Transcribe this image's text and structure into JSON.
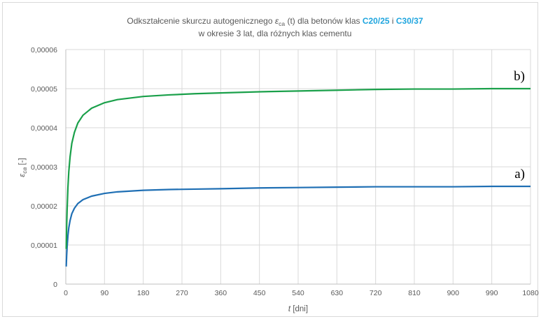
{
  "chart_data": {
    "type": "line",
    "title": {
      "line1_prefix": "Odkształcenie skurczu autogenicznego ",
      "line1_symbol": "ε",
      "line1_symbol_sub": "ca",
      "line1_mid": " (t) dla betonów klas ",
      "line1_class1": "C20/25",
      "line1_and": " i ",
      "line1_class2": "C30/37",
      "line2": "w okresie 3 lat, dla różnych klas cementu"
    },
    "xlabel_var": "t",
    "xlabel_unit": " [dni]",
    "ylabel_symbol": "ε",
    "ylabel_sub": "ca",
    "ylabel_unit": " [-]",
    "xlim": [
      0,
      1080
    ],
    "ylim": [
      0,
      6e-05
    ],
    "x_ticks": [
      0,
      90,
      180,
      270,
      360,
      450,
      540,
      630,
      720,
      810,
      900,
      990,
      1080
    ],
    "y_ticks": [
      0,
      1e-05,
      2e-05,
      3e-05,
      4e-05,
      5e-05,
      6e-05
    ],
    "y_tick_labels": [
      "0",
      "0,00001",
      "0,00002",
      "0,00003",
      "0,00004",
      "0,00005",
      "0,00006"
    ],
    "grid": true,
    "series": [
      {
        "label": "a)",
        "color": "#1f6fb4",
        "x": [
          1,
          2,
          3,
          5,
          7,
          10,
          14,
          20,
          28,
          40,
          60,
          90,
          120,
          180,
          240,
          300,
          360,
          450,
          540,
          630,
          720,
          810,
          900,
          990,
          1080
        ],
        "y": [
          4.5e-06,
          7.3e-06,
          9.4e-06,
          1.24e-05,
          1.44e-05,
          1.63e-05,
          1.8e-05,
          1.94e-05,
          2.06e-05,
          2.16e-05,
          2.25e-05,
          2.32e-05,
          2.36e-05,
          2.4e-05,
          2.42e-05,
          2.43e-05,
          2.44e-05,
          2.46e-05,
          2.47e-05,
          2.48e-05,
          2.49e-05,
          2.49e-05,
          2.49e-05,
          2.5e-05,
          2.5e-05
        ]
      },
      {
        "label": "b)",
        "color": "#1aa04a",
        "x": [
          1,
          2,
          3,
          5,
          7,
          10,
          14,
          20,
          28,
          40,
          60,
          90,
          120,
          180,
          240,
          300,
          360,
          450,
          540,
          630,
          720,
          810,
          900,
          990,
          1080
        ],
        "y": [
          9e-06,
          1.46e-05,
          1.88e-05,
          2.48e-05,
          2.88e-05,
          3.26e-05,
          3.6e-05,
          3.88e-05,
          4.12e-05,
          4.32e-05,
          4.5e-05,
          4.64e-05,
          4.72e-05,
          4.8e-05,
          4.84e-05,
          4.87e-05,
          4.89e-05,
          4.92e-05,
          4.94e-05,
          4.96e-05,
          4.98e-05,
          4.99e-05,
          4.99e-05,
          5e-05,
          5e-05
        ]
      }
    ]
  }
}
